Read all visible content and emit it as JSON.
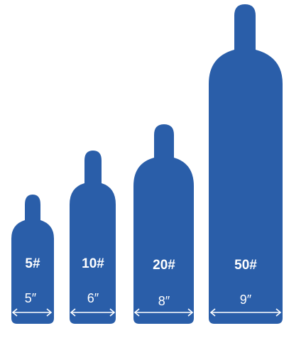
{
  "colors": {
    "cylinder": "#2a5ea9",
    "text": "#ffffff",
    "background": "#ffffff"
  },
  "cylinders": [
    {
      "size_label": "5#",
      "diameter_label": "5″"
    },
    {
      "size_label": "10#",
      "diameter_label": "6″"
    },
    {
      "size_label": "20#",
      "diameter_label": "8″"
    },
    {
      "size_label": "50#",
      "diameter_label": "9″"
    }
  ]
}
